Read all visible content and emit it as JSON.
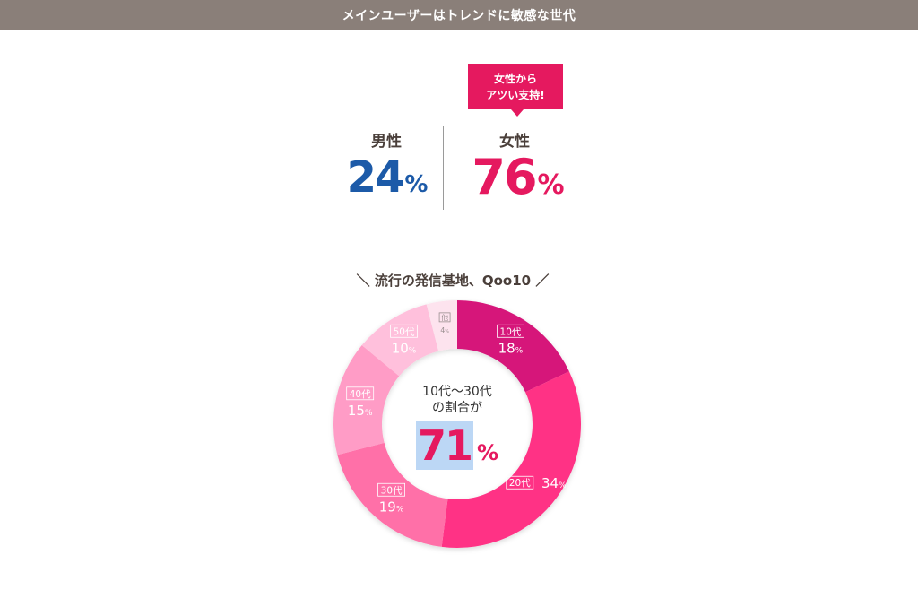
{
  "header": {
    "title": "メインユーザーはトレンドに敏感な世代"
  },
  "callout": {
    "line1": "女性から",
    "line2": "アツい支持!"
  },
  "gender": {
    "male": {
      "label": "男性",
      "value": "24",
      "unit": "%"
    },
    "female": {
      "label": "女性",
      "value": "76",
      "unit": "%"
    }
  },
  "colors": {
    "male": "#1c5aa8",
    "female": "#e5195f",
    "header_bg": "#8a7f79",
    "highlight": "#bcd7f5"
  },
  "chart_data": {
    "type": "pie",
    "title": "＼ 流行の発信基地、Qoo10 ／",
    "unit": "%",
    "slices": [
      {
        "label": "10代",
        "value": 18,
        "color": "#d6157a",
        "text_color": "#ffffff"
      },
      {
        "label": "20代",
        "value": 34,
        "color": "#ff3385",
        "text_color": "#ffffff"
      },
      {
        "label": "30代",
        "value": 19,
        "color": "#ff6fa8",
        "text_color": "#ffffff"
      },
      {
        "label": "40代",
        "value": 15,
        "color": "#ff9cc6",
        "text_color": "#ffffff"
      },
      {
        "label": "50代",
        "value": 10,
        "color": "#ffc0dc",
        "text_color": "#ffffff"
      },
      {
        "label": "他",
        "value": 4,
        "color": "#fde3ee",
        "text_color": "#9a8f90"
      }
    ],
    "center": {
      "line1": "10代〜30代",
      "line2": "の割合が",
      "value": "71",
      "unit": "%"
    }
  }
}
